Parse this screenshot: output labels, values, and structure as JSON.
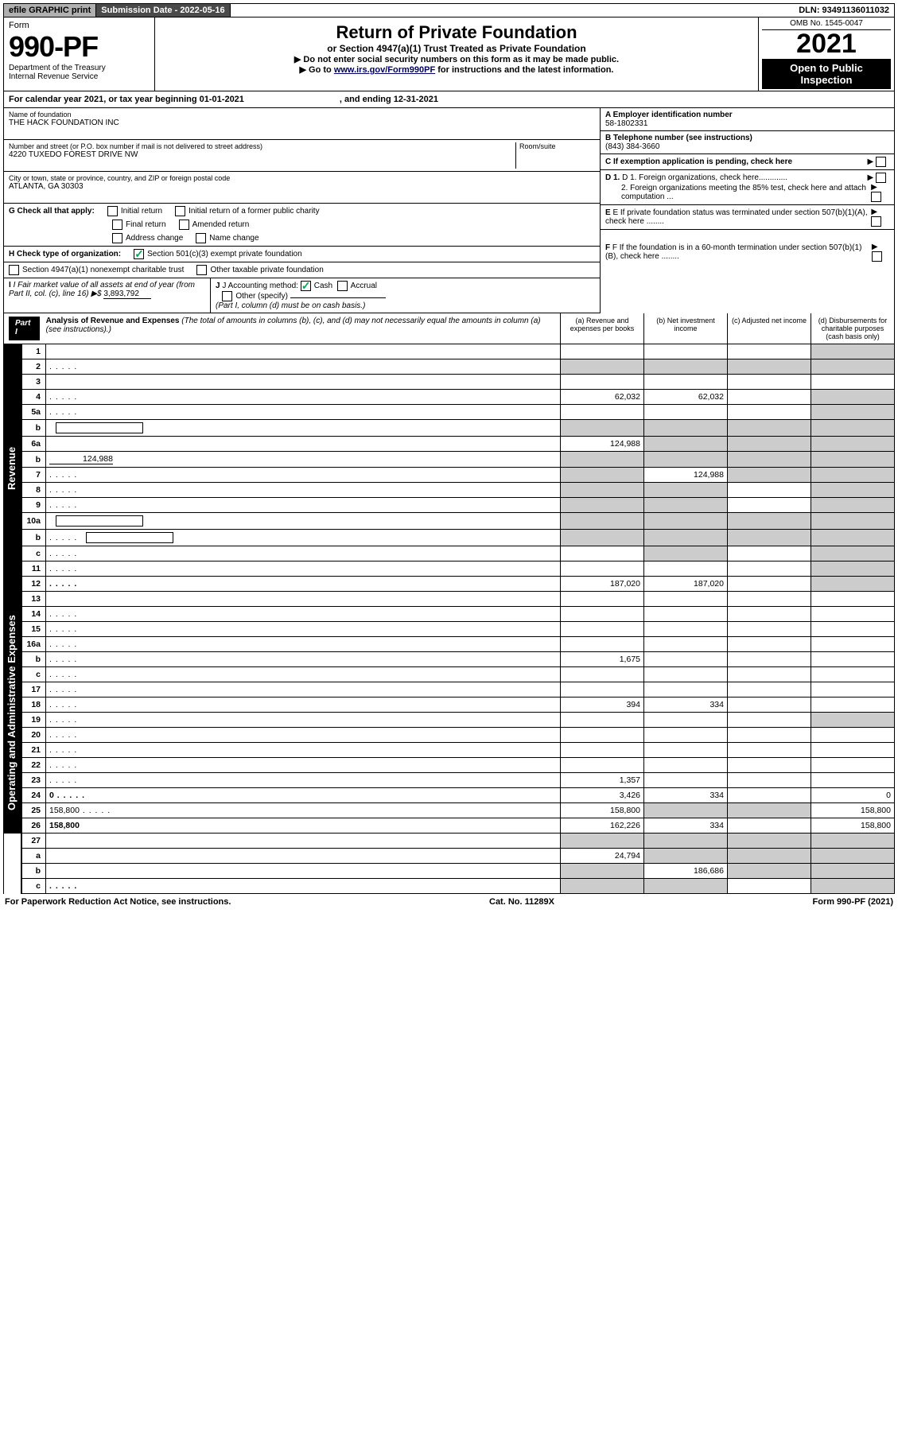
{
  "topbar": {
    "efile": "efile GRAPHIC print",
    "submission": "Submission Date - 2022-05-16",
    "dln": "DLN: 93491136011032"
  },
  "header": {
    "form_label": "Form",
    "form_number": "990-PF",
    "dept": "Department of the Treasury",
    "irs": "Internal Revenue Service",
    "title": "Return of Private Foundation",
    "subtitle": "or Section 4947(a)(1) Trust Treated as Private Foundation",
    "notice1": "▶ Do not enter social security numbers on this form as it may be made public.",
    "notice2_pre": "▶ Go to ",
    "notice2_link": "www.irs.gov/Form990PF",
    "notice2_post": " for instructions and the latest information.",
    "omb": "OMB No. 1545-0047",
    "year": "2021",
    "open_public": "Open to Public Inspection"
  },
  "cal_year": {
    "left": "For calendar year 2021, or tax year beginning 01-01-2021",
    "right": ", and ending 12-31-2021"
  },
  "info": {
    "name_label": "Name of foundation",
    "name": "THE HACK FOUNDATION INC",
    "addr_label": "Number and street (or P.O. box number if mail is not delivered to street address)",
    "addr": "4220 TUXEDO FOREST DRIVE NW",
    "room_label": "Room/suite",
    "city_label": "City or town, state or province, country, and ZIP or foreign postal code",
    "city": "ATLANTA, GA  30303",
    "a_label": "A Employer identification number",
    "a_val": "58-1802331",
    "b_label": "B Telephone number (see instructions)",
    "b_val": "(843) 384-3660",
    "c_label": "C If exemption application is pending, check here",
    "d1_label": "D 1. Foreign organizations, check here.............",
    "d2_label": "2. Foreign organizations meeting the 85% test, check here and attach computation ...",
    "e_label": "E If private foundation status was terminated under section 507(b)(1)(A), check here ........",
    "f_label": "F If the foundation is in a 60-month termination under section 507(b)(1)(B), check here ........"
  },
  "g": {
    "label": "G Check all that apply:",
    "initial": "Initial return",
    "initial_former": "Initial return of a former public charity",
    "final": "Final return",
    "amended": "Amended return",
    "addr_change": "Address change",
    "name_change": "Name change"
  },
  "h": {
    "label": "H Check type of organization:",
    "c1": "Section 501(c)(3) exempt private foundation",
    "c2": "Section 4947(a)(1) nonexempt charitable trust",
    "c3": "Other taxable private foundation"
  },
  "i": {
    "label": "I Fair market value of all assets at end of year (from Part II, col. (c), line 16) ▶$",
    "val": "3,893,792"
  },
  "j": {
    "label": "J Accounting method:",
    "cash": "Cash",
    "accrual": "Accrual",
    "other": "Other (specify)",
    "note": "(Part I, column (d) must be on cash basis.)"
  },
  "part1": {
    "label": "Part I",
    "title": "Analysis of Revenue and Expenses",
    "note": "(The total of amounts in columns (b), (c), and (d) may not necessarily equal the amounts in column (a) (see instructions).)",
    "cols": {
      "a": "(a)  Revenue and expenses per books",
      "b": "(b)  Net investment income",
      "c": "(c)  Adjusted net income",
      "d": "(d)  Disbursements for charitable purposes (cash basis only)"
    }
  },
  "side_labels": {
    "revenue": "Revenue",
    "expenses": "Operating and Administrative Expenses"
  },
  "rows": [
    {
      "n": "1",
      "d": "",
      "a": "",
      "b": "",
      "c": "",
      "shade_c": false,
      "shade_d": true
    },
    {
      "n": "2",
      "d": "",
      "a": "",
      "b": "",
      "c": "",
      "shade_all": true,
      "dots": true
    },
    {
      "n": "3",
      "d": "",
      "a": "",
      "b": "",
      "c": ""
    },
    {
      "n": "4",
      "d": "",
      "a": "62,032",
      "b": "62,032",
      "c": "",
      "dots": true,
      "shade_d": true
    },
    {
      "n": "5a",
      "d": "",
      "a": "",
      "b": "",
      "c": "",
      "dots": true,
      "shade_d": true
    },
    {
      "n": "b",
      "d": "",
      "a": "",
      "b": "",
      "c": "",
      "shade_all": true,
      "inline_box": true
    },
    {
      "n": "6a",
      "d": "",
      "a": "124,988",
      "b": "",
      "c": "",
      "shade_bcd": true
    },
    {
      "n": "b",
      "d": "",
      "a": "",
      "b": "",
      "c": "",
      "shade_all": true,
      "inline_val": "124,988"
    },
    {
      "n": "7",
      "d": "",
      "a": "",
      "b": "124,988",
      "c": "",
      "shade_a": true,
      "dots": true,
      "shade_cd": true
    },
    {
      "n": "8",
      "d": "",
      "a": "",
      "b": "",
      "c": "",
      "shade_ab": true,
      "dots": true,
      "shade_d": true
    },
    {
      "n": "9",
      "d": "",
      "a": "",
      "b": "",
      "c": "",
      "shade_ab": true,
      "dots": true,
      "shade_d": true
    },
    {
      "n": "10a",
      "d": "",
      "a": "",
      "b": "",
      "c": "",
      "shade_all": true,
      "inline_box": true
    },
    {
      "n": "b",
      "d": "",
      "a": "",
      "b": "",
      "c": "",
      "shade_all": true,
      "inline_box": true,
      "dots": true
    },
    {
      "n": "c",
      "d": "",
      "a": "",
      "b": "",
      "c": "",
      "shade_b": true,
      "dots": true,
      "shade_d": true
    },
    {
      "n": "11",
      "d": "",
      "a": "",
      "b": "",
      "c": "",
      "dots": true,
      "shade_d": true
    },
    {
      "n": "12",
      "d": "",
      "a": "187,020",
      "b": "187,020",
      "c": "",
      "bold": true,
      "dots": true,
      "shade_d": true
    }
  ],
  "rows_exp": [
    {
      "n": "13",
      "d": "",
      "a": "",
      "b": "",
      "c": ""
    },
    {
      "n": "14",
      "d": "",
      "a": "",
      "b": "",
      "c": "",
      "dots": true
    },
    {
      "n": "15",
      "d": "",
      "a": "",
      "b": "",
      "c": "",
      "dots": true
    },
    {
      "n": "16a",
      "d": "",
      "a": "",
      "b": "",
      "c": "",
      "dots": true
    },
    {
      "n": "b",
      "d": "",
      "a": "1,675",
      "b": "",
      "c": "",
      "dots": true
    },
    {
      "n": "c",
      "d": "",
      "a": "",
      "b": "",
      "c": "",
      "dots": true
    },
    {
      "n": "17",
      "d": "",
      "a": "",
      "b": "",
      "c": "",
      "dots": true
    },
    {
      "n": "18",
      "d": "",
      "a": "394",
      "b": "334",
      "c": "",
      "dots": true
    },
    {
      "n": "19",
      "d": "",
      "a": "",
      "b": "",
      "c": "",
      "dots": true,
      "shade_d": true
    },
    {
      "n": "20",
      "d": "",
      "a": "",
      "b": "",
      "c": "",
      "dots": true
    },
    {
      "n": "21",
      "d": "",
      "a": "",
      "b": "",
      "c": "",
      "dots": true
    },
    {
      "n": "22",
      "d": "",
      "a": "",
      "b": "",
      "c": "",
      "dots": true
    },
    {
      "n": "23",
      "d": "",
      "a": "1,357",
      "b": "",
      "c": "",
      "dots": true
    },
    {
      "n": "24",
      "d": "0",
      "a": "3,426",
      "b": "334",
      "c": "",
      "bold": true,
      "dots": true
    },
    {
      "n": "25",
      "d": "158,800",
      "a": "158,800",
      "b": "",
      "c": "",
      "dots": true,
      "shade_bc": true
    },
    {
      "n": "26",
      "d": "158,800",
      "a": "162,226",
      "b": "334",
      "c": "",
      "bold": true
    }
  ],
  "rows_sub": [
    {
      "n": "27",
      "d": "",
      "a": "",
      "b": "",
      "c": "",
      "shade_all": true
    },
    {
      "n": "a",
      "d": "",
      "a": "24,794",
      "b": "",
      "c": "",
      "bold": true,
      "shade_bcd": true
    },
    {
      "n": "b",
      "d": "",
      "a": "",
      "b": "186,686",
      "c": "",
      "bold": true,
      "shade_a": true,
      "shade_cd": true
    },
    {
      "n": "c",
      "d": "",
      "a": "",
      "b": "",
      "c": "",
      "bold": true,
      "shade_ab": true,
      "shade_d": true,
      "dots": true
    }
  ],
  "footer": {
    "left": "For Paperwork Reduction Act Notice, see instructions.",
    "mid": "Cat. No. 11289X",
    "right": "Form 990-PF (2021)"
  }
}
